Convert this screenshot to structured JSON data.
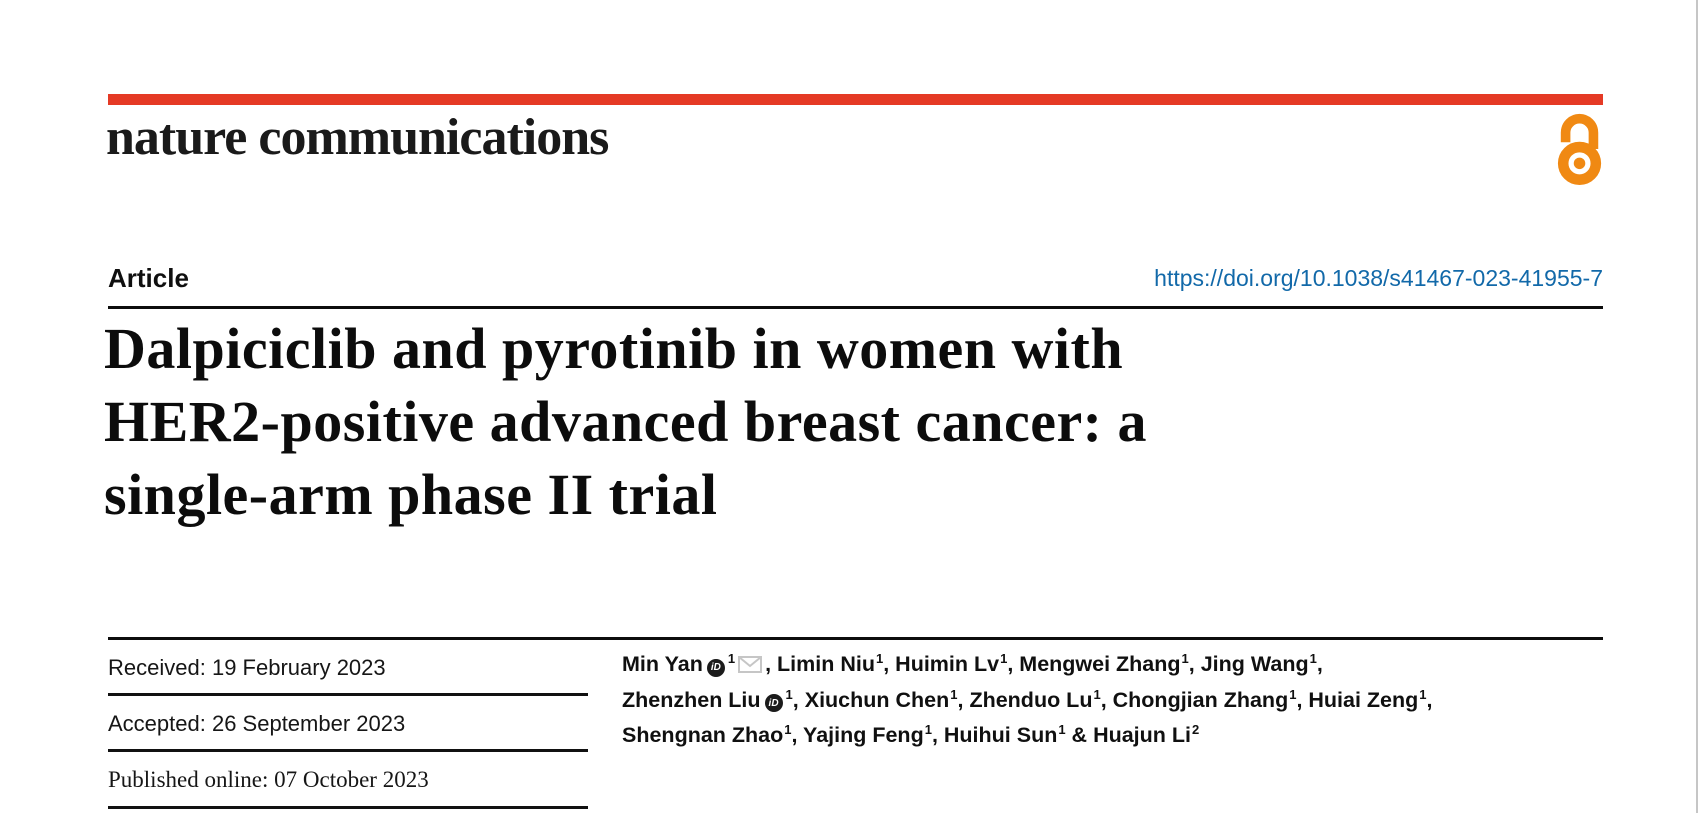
{
  "colors": {
    "brand_red": "#e53a25",
    "open_access_orange": "#f08913",
    "doi_blue": "#1269a9",
    "text_black": "#0f0f0f",
    "envelope_gray": "#c6c6c6",
    "page_edge_gray": "#c6c6c6"
  },
  "header": {
    "journal_name": "nature communications",
    "open_access_icon": "open-access-padlock-icon"
  },
  "article_bar": {
    "type_label": "Article",
    "doi": "https://doi.org/10.1038/s41467-023-41955-7"
  },
  "title": {
    "lines": [
      "Dalpiciclib and pyrotinib in women with",
      "HER2-positive advanced breast cancer: a",
      "single-arm phase II trial"
    ]
  },
  "dates": {
    "received_label": "Received:",
    "received_value": "19 February 2023",
    "accepted_label": "Accepted:",
    "accepted_value": "26 September 2023",
    "published_label": "Published online:",
    "published_value": "07 October 2023"
  },
  "icons": {
    "orcid_badge_text": "iD",
    "orcid_icon": "orcid-id-icon",
    "email_icon": "envelope-icon"
  },
  "authors": {
    "list": [
      {
        "name": "Min Yan",
        "sup": "1",
        "orcid": true,
        "email": true,
        "sep": ", "
      },
      {
        "name": "Limin Niu",
        "sup": "1",
        "sep": ", "
      },
      {
        "name": "Huimin Lv",
        "sup": "1",
        "sep": ", "
      },
      {
        "name": "Mengwei Zhang",
        "sup": "1",
        "sep": ", "
      },
      {
        "name": "Jing Wang",
        "sup": "1",
        "sep": ",",
        "break": true
      },
      {
        "name": "Zhenzhen Liu",
        "sup": "1",
        "orcid": true,
        "sep": ", "
      },
      {
        "name": "Xiuchun Chen",
        "sup": "1",
        "sep": ", "
      },
      {
        "name": "Zhenduo Lu",
        "sup": "1",
        "sep": ", "
      },
      {
        "name": "Chongjian Zhang",
        "sup": "1",
        "sep": ", "
      },
      {
        "name": "Huiai Zeng",
        "sup": "1",
        "sep": ",",
        "break": true
      },
      {
        "name": "Shengnan Zhao",
        "sup": "1",
        "sep": ", "
      },
      {
        "name": "Yajing Feng",
        "sup": "1",
        "sep": ", "
      },
      {
        "name": "Huihui Sun",
        "sup": "1",
        "sep": " & "
      },
      {
        "name": "Huajun Li",
        "sup": "2",
        "sep": ""
      }
    ]
  }
}
